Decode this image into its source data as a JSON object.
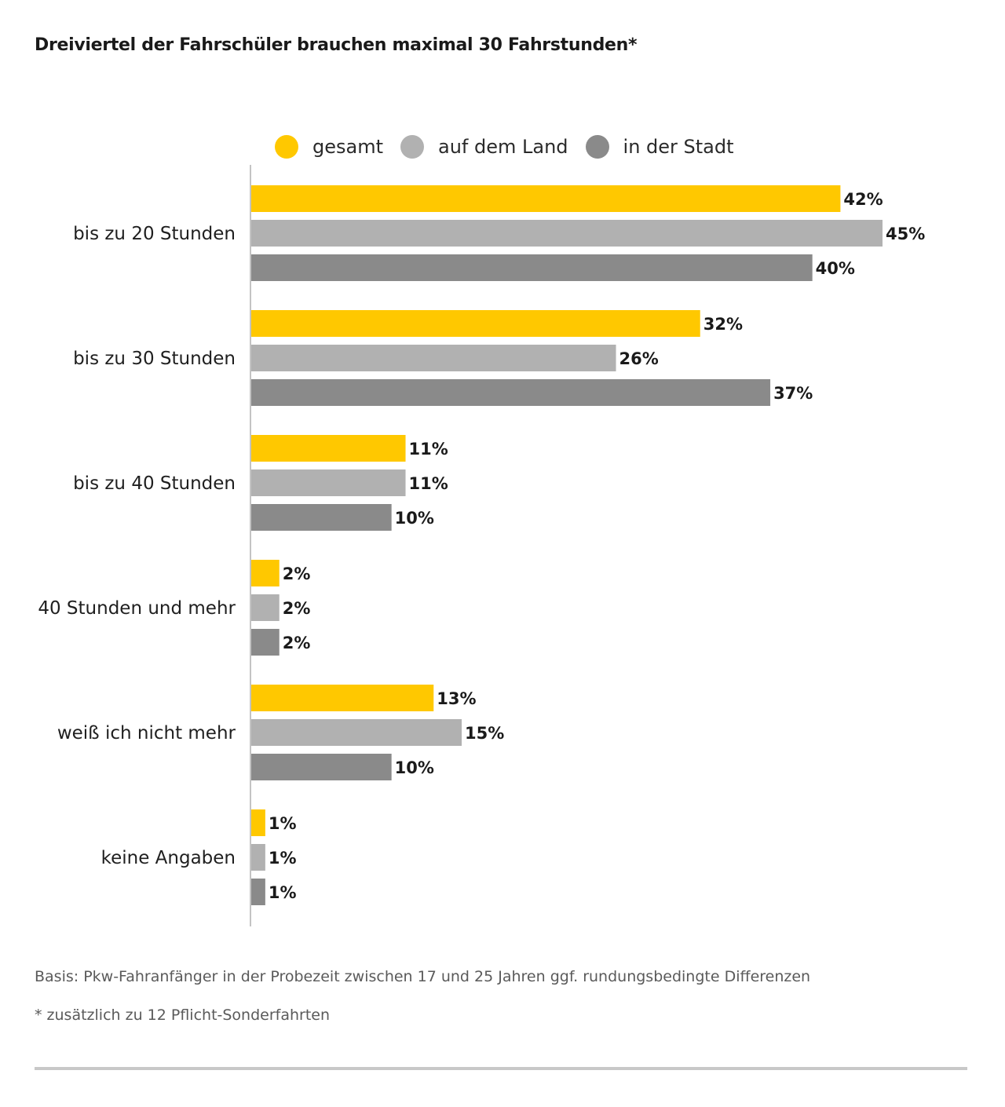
{
  "chart_data": {
    "type": "bar",
    "orientation": "horizontal",
    "title": "Dreiviertel der Fahrschüler brauchen maximal 30 Fahrstunden*",
    "categories": [
      "bis zu 20 Stunden",
      "bis zu 30 Stunden",
      "bis zu 40 Stunden",
      "40 Stunden und mehr",
      "weiß ich nicht mehr",
      "keine Angaben"
    ],
    "series": [
      {
        "name": "gesamt",
        "color": "#FFC800",
        "values": [
          42,
          32,
          11,
          2,
          13,
          1
        ]
      },
      {
        "name": "auf dem Land",
        "color": "#B1B1B1",
        "values": [
          45,
          26,
          11,
          2,
          15,
          1
        ]
      },
      {
        "name": "in der Stadt",
        "color": "#8A8A8A",
        "values": [
          40,
          37,
          10,
          2,
          10,
          1
        ]
      }
    ],
    "value_suffix": "%",
    "xlabel": "",
    "ylabel": "",
    "xlim": [
      0,
      45
    ],
    "grid": false,
    "legend_position": "top"
  },
  "footnotes": {
    "basis": "Basis: Pkw-Fahranfänger in der Probezeit zwischen 17 und 25 Jahren ggf. rundungsbedingte Differenzen",
    "asterisk": "* zusätzlich zu 12 Pflicht-Sonderfahrten"
  }
}
